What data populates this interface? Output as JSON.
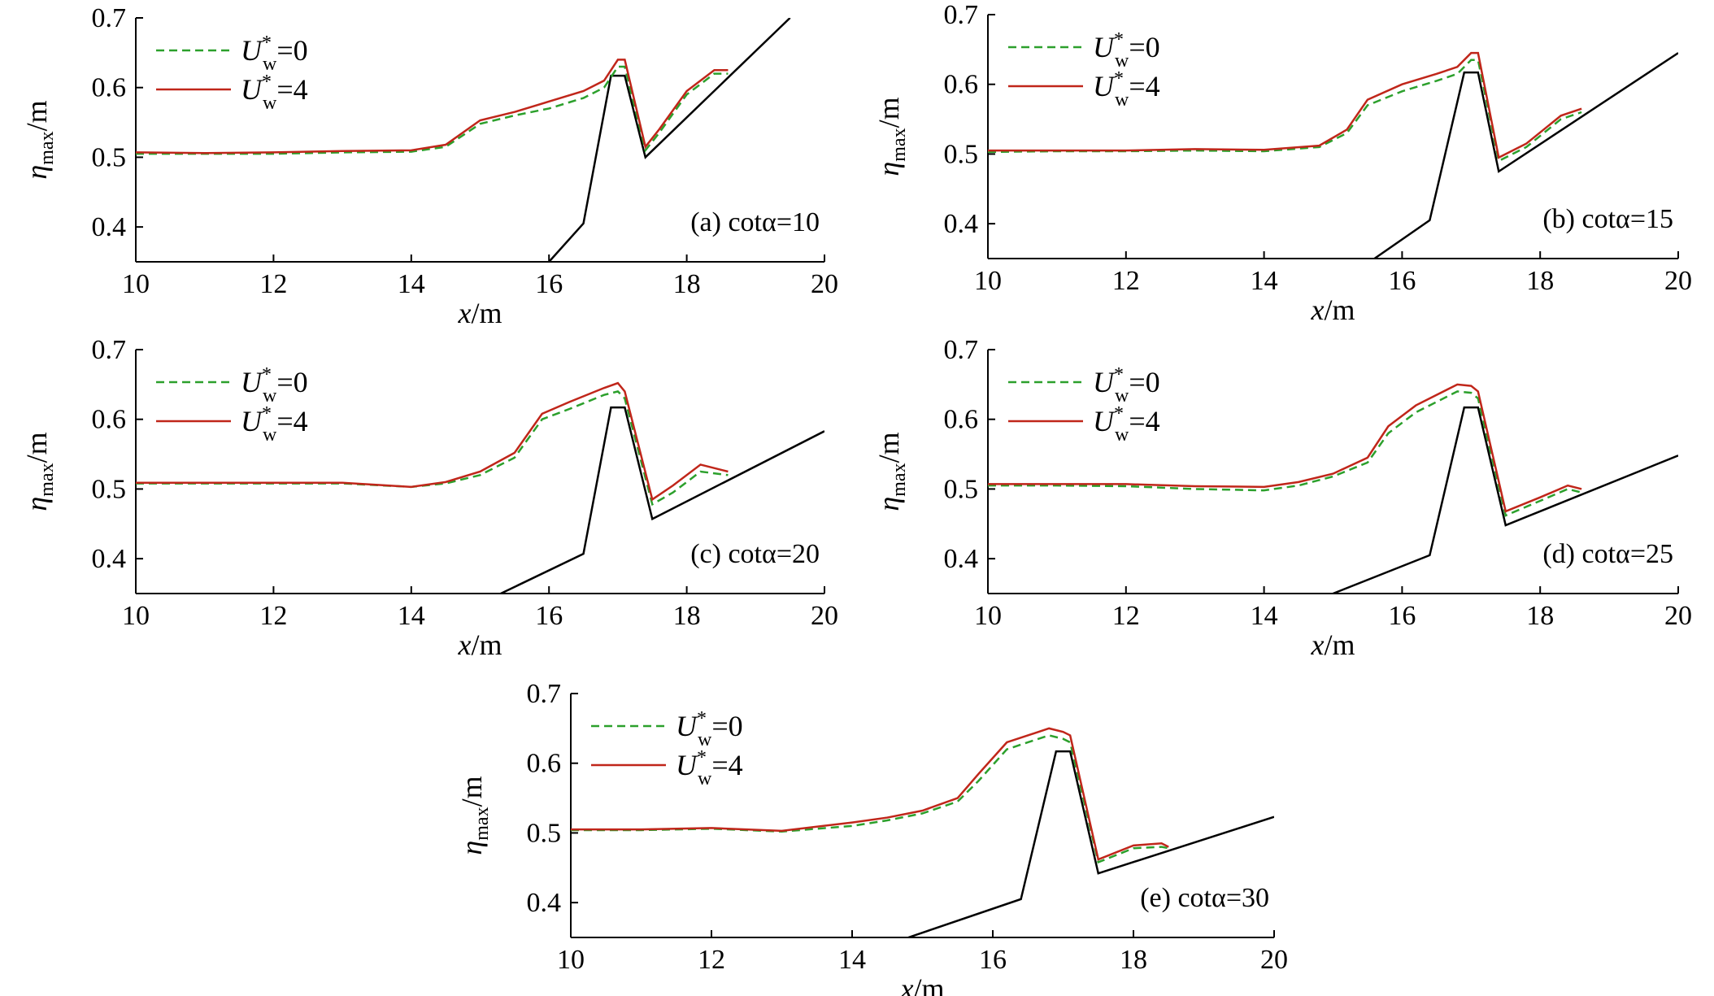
{
  "colors": {
    "u0": "#2ca02c",
    "u4": "#c0261a",
    "structure": "#000000",
    "axis": "#000000"
  },
  "labels": {
    "eta": "η",
    "eta_sub": "max",
    "eta_unit": "/m",
    "x": "x",
    "x_unit": "/m",
    "U": "U",
    "U_sub": "w",
    "U_sup": "*",
    "u0_val": "=0",
    "u4_val": "=4"
  },
  "chart_data": [
    {
      "type": "line",
      "panel_label": "(a) cotα=10",
      "xlim": [
        10,
        20
      ],
      "ylim": [
        0.35,
        0.7
      ],
      "xticks": [
        "10",
        "12",
        "14",
        "16",
        "18",
        "20"
      ],
      "yticks": [
        "0.4",
        "0.5",
        "0.6",
        "0.7"
      ],
      "legend": "top-left",
      "structure": {
        "x": [
          16.0,
          16.5,
          16.9,
          17.1,
          17.4,
          19.5
        ],
        "y": [
          0.35,
          0.405,
          0.617,
          0.617,
          0.5,
          0.7
        ]
      },
      "series": [
        {
          "name": "U*w=0",
          "style": "dashed",
          "x": [
            10,
            11,
            12,
            13,
            14,
            14.5,
            15,
            15.5,
            16,
            16.5,
            16.8,
            17.0,
            17.1,
            17.4,
            17.6,
            18.0,
            18.4,
            18.6
          ],
          "y": [
            0.505,
            0.505,
            0.505,
            0.507,
            0.508,
            0.515,
            0.548,
            0.56,
            0.57,
            0.585,
            0.6,
            0.63,
            0.63,
            0.51,
            0.535,
            0.59,
            0.62,
            0.62
          ]
        },
        {
          "name": "U*w=4",
          "style": "solid",
          "x": [
            10,
            11,
            12,
            13,
            14,
            14.5,
            15,
            15.5,
            16,
            16.5,
            16.8,
            17.0,
            17.1,
            17.4,
            17.6,
            18.0,
            18.4,
            18.6
          ],
          "y": [
            0.507,
            0.506,
            0.507,
            0.509,
            0.51,
            0.518,
            0.553,
            0.565,
            0.58,
            0.595,
            0.61,
            0.64,
            0.64,
            0.515,
            0.54,
            0.595,
            0.625,
            0.625
          ]
        }
      ]
    },
    {
      "type": "line",
      "panel_label": "(b) cotα=15",
      "xlim": [
        10,
        20
      ],
      "ylim": [
        0.35,
        0.7
      ],
      "xticks": [
        "10",
        "12",
        "14",
        "16",
        "18",
        "20"
      ],
      "yticks": [
        "0.4",
        "0.5",
        "0.6",
        "0.7"
      ],
      "legend": "top-left",
      "structure": {
        "x": [
          15.6,
          16.4,
          16.9,
          17.1,
          17.4,
          20.0
        ],
        "y": [
          0.35,
          0.405,
          0.617,
          0.617,
          0.475,
          0.645
        ]
      },
      "series": [
        {
          "name": "U*w=0",
          "style": "dashed",
          "x": [
            10,
            11,
            12,
            13,
            14,
            14.8,
            15.2,
            15.5,
            16,
            16.5,
            16.8,
            17.0,
            17.1,
            17.4,
            17.8,
            18.3,
            18.6
          ],
          "y": [
            0.503,
            0.504,
            0.504,
            0.505,
            0.504,
            0.51,
            0.53,
            0.57,
            0.59,
            0.605,
            0.615,
            0.635,
            0.635,
            0.49,
            0.51,
            0.55,
            0.56
          ]
        },
        {
          "name": "U*w=4",
          "style": "solid",
          "x": [
            10,
            11,
            12,
            13,
            14,
            14.8,
            15.2,
            15.5,
            16,
            16.5,
            16.8,
            17.0,
            17.1,
            17.4,
            17.8,
            18.3,
            18.6
          ],
          "y": [
            0.505,
            0.505,
            0.505,
            0.507,
            0.506,
            0.512,
            0.535,
            0.578,
            0.6,
            0.615,
            0.625,
            0.645,
            0.645,
            0.495,
            0.515,
            0.555,
            0.565
          ]
        }
      ]
    },
    {
      "type": "line",
      "panel_label": "(c) cotα=20",
      "xlim": [
        10,
        20
      ],
      "ylim": [
        0.35,
        0.7
      ],
      "xticks": [
        "10",
        "12",
        "14",
        "16",
        "18",
        "20"
      ],
      "yticks": [
        "0.4",
        "0.5",
        "0.6",
        "0.7"
      ],
      "legend": "top-left",
      "structure": {
        "x": [
          15.3,
          16.5,
          16.9,
          17.1,
          17.5,
          20.0
        ],
        "y": [
          0.35,
          0.407,
          0.617,
          0.617,
          0.457,
          0.583
        ]
      },
      "series": [
        {
          "name": "U*w=0",
          "style": "dashed",
          "x": [
            10,
            11,
            12,
            13,
            14,
            14.5,
            15,
            15.5,
            15.9,
            16.3,
            16.8,
            17.0,
            17.1,
            17.5,
            17.8,
            18.2,
            18.6
          ],
          "y": [
            0.508,
            0.508,
            0.508,
            0.508,
            0.503,
            0.508,
            0.52,
            0.545,
            0.6,
            0.615,
            0.635,
            0.64,
            0.63,
            0.478,
            0.495,
            0.525,
            0.52
          ]
        },
        {
          "name": "U*w=4",
          "style": "solid",
          "x": [
            10,
            11,
            12,
            13,
            14,
            14.5,
            15,
            15.5,
            15.9,
            16.3,
            16.8,
            17.0,
            17.1,
            17.5,
            17.8,
            18.2,
            18.6
          ],
          "y": [
            0.509,
            0.509,
            0.509,
            0.509,
            0.503,
            0.51,
            0.525,
            0.552,
            0.608,
            0.625,
            0.645,
            0.652,
            0.64,
            0.485,
            0.505,
            0.535,
            0.525
          ]
        }
      ]
    },
    {
      "type": "line",
      "panel_label": "(d) cotα=25",
      "xlim": [
        10,
        20
      ],
      "ylim": [
        0.35,
        0.7
      ],
      "xticks": [
        "10",
        "12",
        "14",
        "16",
        "18",
        "20"
      ],
      "yticks": [
        "0.4",
        "0.5",
        "0.6",
        "0.7"
      ],
      "legend": "top-left",
      "structure": {
        "x": [
          15.0,
          16.4,
          16.9,
          17.1,
          17.5,
          20.0
        ],
        "y": [
          0.35,
          0.405,
          0.617,
          0.617,
          0.448,
          0.548
        ]
      },
      "series": [
        {
          "name": "U*w=0",
          "style": "dashed",
          "x": [
            10,
            11,
            12,
            13,
            14,
            14.5,
            15,
            15.5,
            15.8,
            16.2,
            16.8,
            17.0,
            17.1,
            17.5,
            18.0,
            18.4,
            18.6
          ],
          "y": [
            0.505,
            0.505,
            0.504,
            0.5,
            0.498,
            0.505,
            0.518,
            0.538,
            0.58,
            0.61,
            0.64,
            0.638,
            0.63,
            0.462,
            0.483,
            0.5,
            0.495
          ]
        },
        {
          "name": "U*w=4",
          "style": "solid",
          "x": [
            10,
            11,
            12,
            13,
            14,
            14.5,
            15,
            15.5,
            15.8,
            16.2,
            16.8,
            17.0,
            17.1,
            17.5,
            18.0,
            18.4,
            18.6
          ],
          "y": [
            0.507,
            0.507,
            0.507,
            0.504,
            0.503,
            0.51,
            0.522,
            0.545,
            0.59,
            0.62,
            0.65,
            0.648,
            0.64,
            0.468,
            0.488,
            0.505,
            0.5
          ]
        }
      ]
    },
    {
      "type": "line",
      "panel_label": "(e) cotα=30",
      "xlim": [
        10,
        20
      ],
      "ylim": [
        0.35,
        0.7
      ],
      "xticks": [
        "10",
        "12",
        "14",
        "16",
        "18",
        "20"
      ],
      "yticks": [
        "0.4",
        "0.5",
        "0.6",
        "0.7"
      ],
      "legend": "top-left",
      "structure": {
        "x": [
          14.8,
          16.4,
          16.9,
          17.1,
          17.5,
          20.0
        ],
        "y": [
          0.35,
          0.405,
          0.617,
          0.617,
          0.442,
          0.523
        ]
      },
      "series": [
        {
          "name": "U*w=0",
          "style": "dashed",
          "x": [
            10,
            11,
            12,
            13,
            14,
            14.5,
            15,
            15.5,
            15.8,
            16.2,
            16.8,
            17.0,
            17.1,
            17.5,
            18.0,
            18.4,
            18.5
          ],
          "y": [
            0.504,
            0.504,
            0.506,
            0.502,
            0.51,
            0.518,
            0.528,
            0.545,
            0.575,
            0.62,
            0.64,
            0.635,
            0.63,
            0.458,
            0.478,
            0.48,
            0.478
          ]
        },
        {
          "name": "U*w=4",
          "style": "solid",
          "x": [
            10,
            11,
            12,
            13,
            14,
            14.5,
            15,
            15.5,
            15.8,
            16.2,
            16.8,
            17.0,
            17.1,
            17.5,
            18.0,
            18.4,
            18.5
          ],
          "y": [
            0.505,
            0.505,
            0.507,
            0.503,
            0.515,
            0.522,
            0.532,
            0.55,
            0.585,
            0.63,
            0.65,
            0.645,
            0.64,
            0.462,
            0.482,
            0.485,
            0.48
          ]
        }
      ]
    }
  ]
}
